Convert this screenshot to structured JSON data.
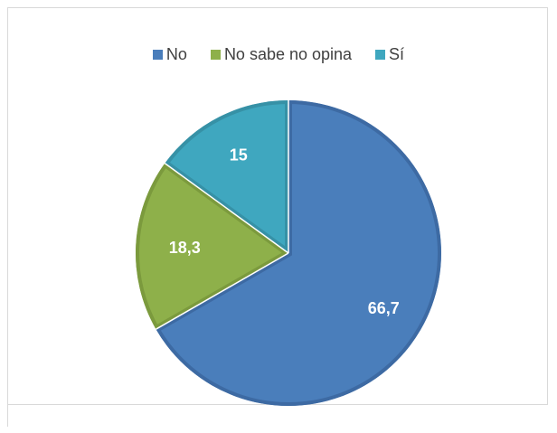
{
  "chart_data": {
    "type": "pie",
    "categories": [
      "No",
      "No sabe no opina",
      "Sí"
    ],
    "values": [
      66.7,
      18.3,
      15
    ],
    "data_labels": [
      "66,7",
      "18,3",
      "15"
    ],
    "colors": [
      "#4a7ebb",
      "#8eb04a",
      "#3fa7bf"
    ],
    "edge_colors": [
      "#3d6aa3",
      "#7b9a3d",
      "#3691a6"
    ],
    "legend_position": "top",
    "start": "12 o'clock, clockwise"
  },
  "legend": {
    "items": [
      {
        "label": "No"
      },
      {
        "label": "No sabe no opina"
      },
      {
        "label": "Sí"
      }
    ]
  }
}
